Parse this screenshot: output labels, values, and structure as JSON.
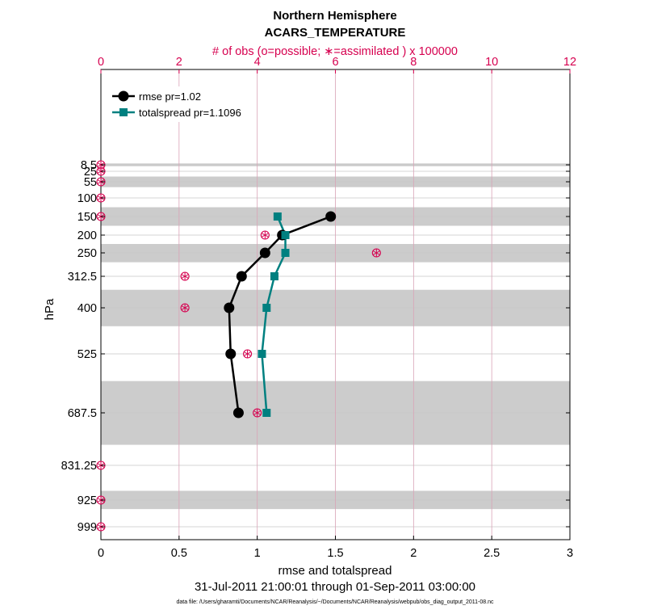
{
  "chart_data": {
    "type": "line",
    "title": "Northern Hemisphere",
    "subtitle": "ACARS_TEMPERATURE",
    "top_axis_label": "# of obs (o=possible; ∗=assimilated ) x 100000",
    "xlabel": "rmse and totalspread",
    "ylabel": "hPa",
    "date_range": "31-Jul-2011 21:00:01 through 01-Sep-2011 03:00:00",
    "footnote": "data file: /Users/gharamti/Documents/NCAR/Reanalysis/~/Documents/NCAR/Reanalysis/webpub/obs_diag_output_2011-08.nc",
    "xlim": [
      0,
      3
    ],
    "top_xlim": [
      0,
      12
    ],
    "x_ticks": [
      0,
      0.5,
      1,
      1.5,
      2,
      2.5,
      3
    ],
    "top_ticks": [
      0,
      2,
      4,
      6,
      8,
      10,
      12
    ],
    "y_ticks": [
      8.5,
      25,
      55,
      100,
      150,
      200,
      250,
      312.5,
      400,
      525,
      687.5,
      831.25,
      925,
      999
    ],
    "y_tick_labels": [
      "8.5",
      "25",
      "55",
      "100",
      "150",
      "200",
      "250",
      "312.5",
      "400",
      "525",
      "687.5",
      "831.25",
      "925",
      "999"
    ],
    "shaded_bands": [
      [
        5,
        12
      ],
      [
        40,
        70
      ],
      [
        125,
        175
      ],
      [
        225,
        275
      ],
      [
        350,
        450
      ],
      [
        600,
        775
      ],
      [
        900,
        950
      ]
    ],
    "colors": {
      "rmse": "#000000",
      "totalspread": "#008080",
      "obs": "#d6004f",
      "band": "#cccccc",
      "grid_top": "#d6004f"
    },
    "series": [
      {
        "name": "rmse pr=1.02",
        "marker": "circle",
        "levels": [
          150,
          200,
          250,
          312.5,
          400,
          525,
          687.5
        ],
        "values": [
          1.47,
          1.16,
          1.05,
          0.9,
          0.82,
          0.83,
          0.88
        ]
      },
      {
        "name": "totalspread pr=1.1096",
        "marker": "square",
        "levels": [
          150,
          200,
          250,
          312.5,
          400,
          525,
          687.5
        ],
        "values": [
          1.13,
          1.18,
          1.18,
          1.11,
          1.06,
          1.03,
          1.06
        ]
      }
    ],
    "obs": {
      "name": "# of obs",
      "levels": [
        8.5,
        25,
        55,
        100,
        150,
        200,
        250,
        312.5,
        400,
        525,
        687.5,
        831.25,
        925,
        999
      ],
      "possible": [
        0,
        0,
        0,
        0,
        0,
        4.2,
        7.05,
        2.15,
        2.15,
        3.75,
        4.0,
        0,
        0,
        0
      ]
    },
    "legend_position": "top-left"
  }
}
